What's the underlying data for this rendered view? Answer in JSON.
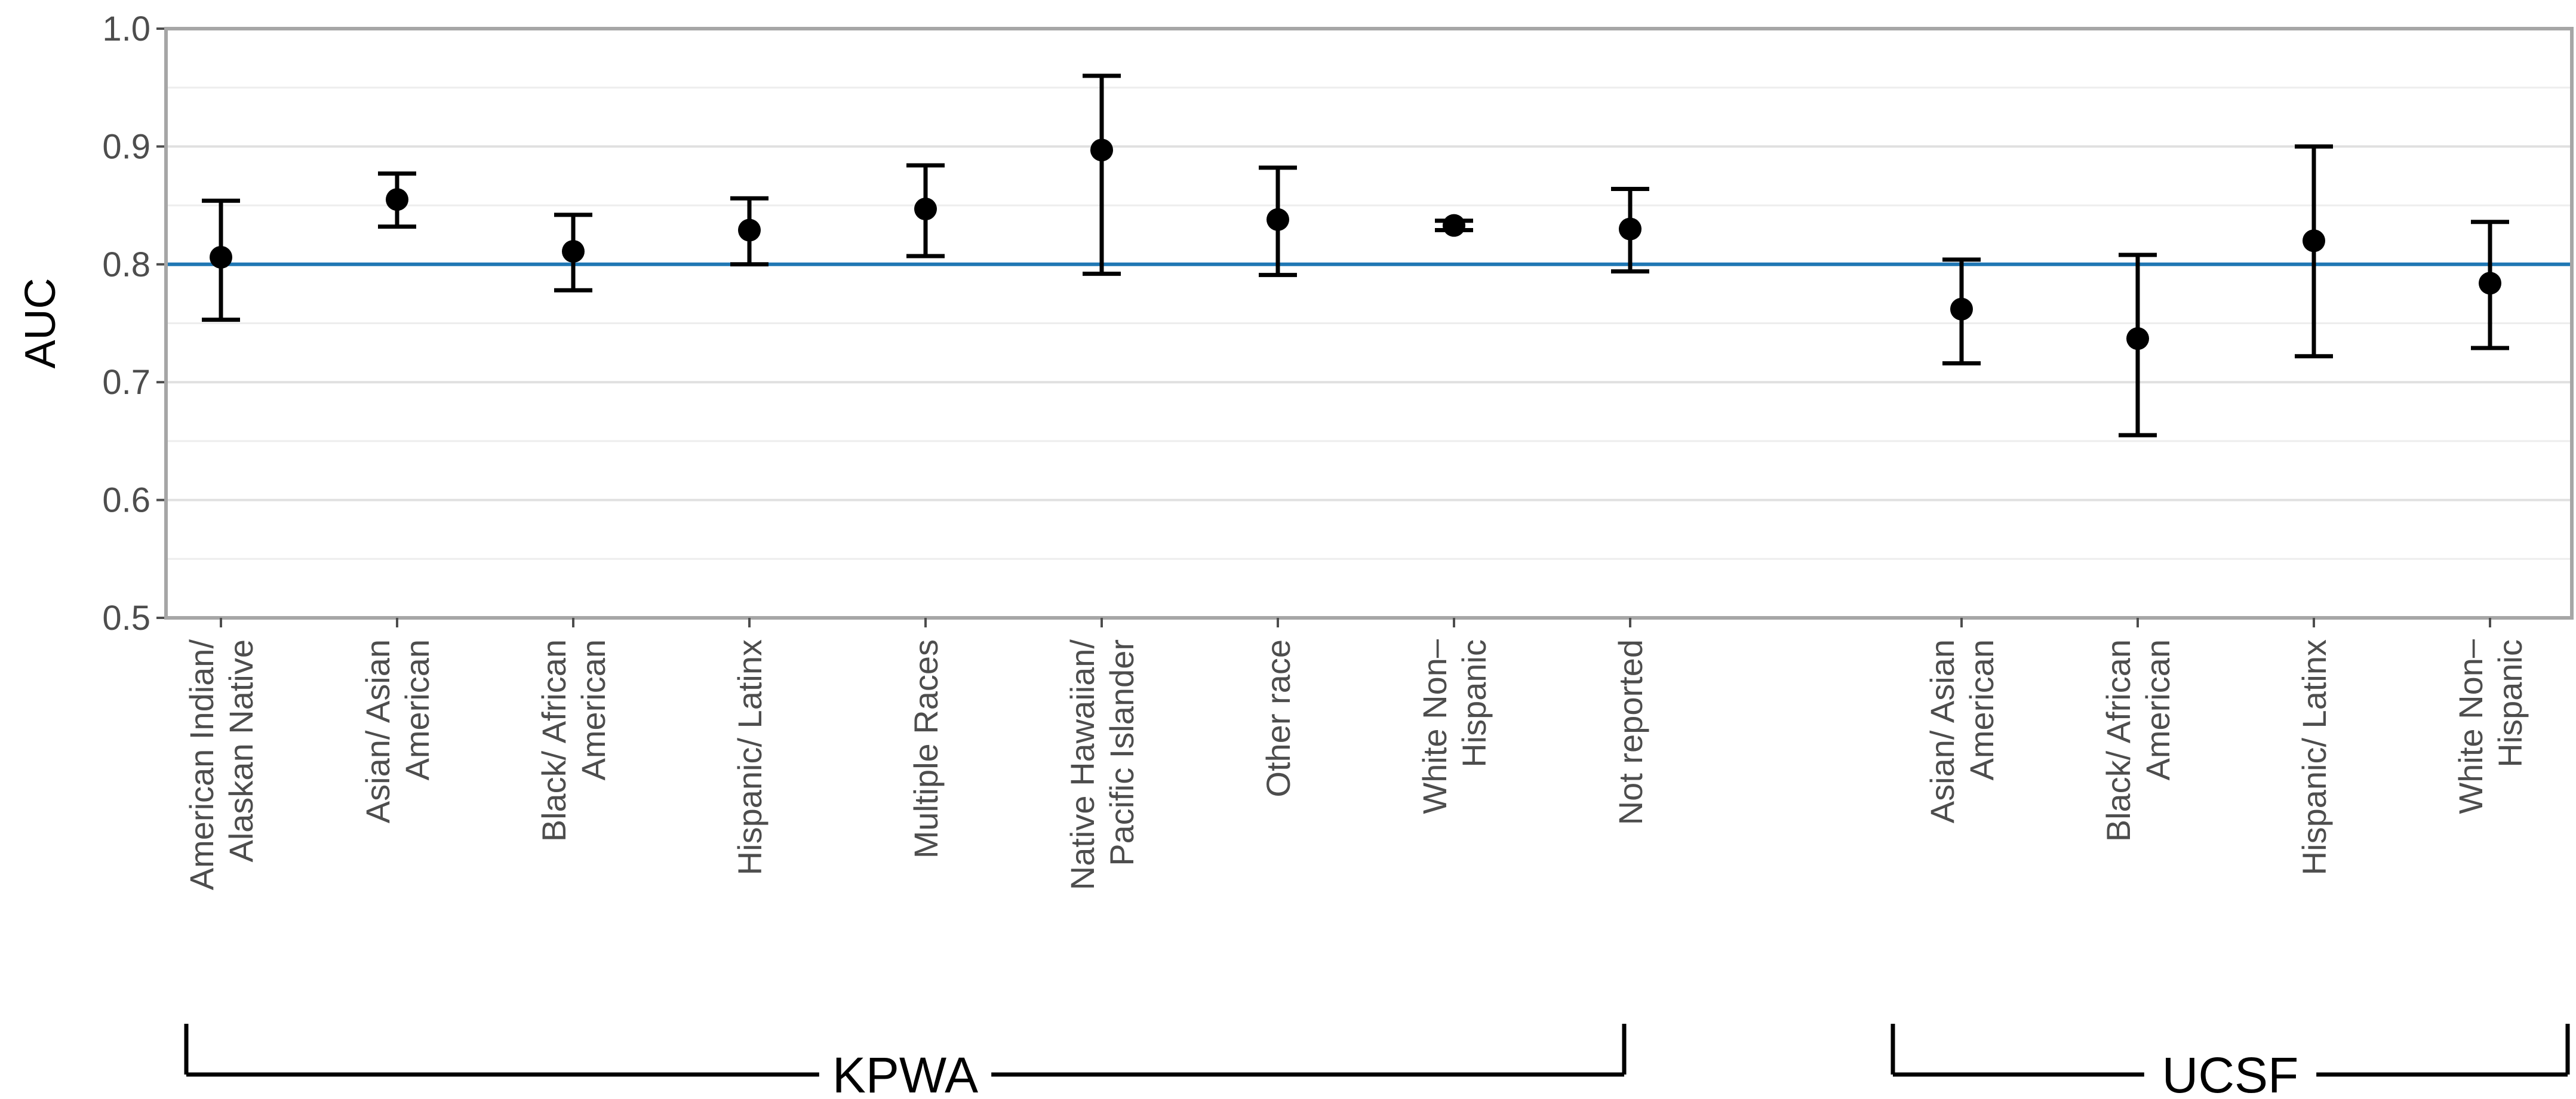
{
  "chart_data": {
    "type": "errorbar",
    "ylabel": "AUC",
    "ylim": [
      0.5,
      1.0
    ],
    "yticks": [
      "0.5",
      "0.6",
      "0.7",
      "0.8",
      "0.9",
      "1.0"
    ],
    "reference_line": {
      "y": 0.8,
      "color": "#1f77b4"
    },
    "grid": true,
    "groups": [
      {
        "label": "KPWA",
        "from": 0,
        "to": 8
      },
      {
        "label": "UCSF",
        "from": 9,
        "to": 12
      }
    ],
    "categories": [
      {
        "lines": [
          "American Indian/",
          "Alaskan Native"
        ],
        "estimate": 0.806,
        "lower": 0.753,
        "upper": 0.854
      },
      {
        "lines": [
          "Asian/ Asian",
          "American"
        ],
        "estimate": 0.855,
        "lower": 0.832,
        "upper": 0.877
      },
      {
        "lines": [
          "Black/ African",
          "American"
        ],
        "estimate": 0.811,
        "lower": 0.778,
        "upper": 0.842
      },
      {
        "lines": [
          "Hispanic/ Latinx"
        ],
        "estimate": 0.829,
        "lower": 0.8,
        "upper": 0.856
      },
      {
        "lines": [
          "Multiple Races"
        ],
        "estimate": 0.847,
        "lower": 0.807,
        "upper": 0.884
      },
      {
        "lines": [
          "Native Hawaiian/",
          "Pacific Islander"
        ],
        "estimate": 0.897,
        "lower": 0.792,
        "upper": 0.96
      },
      {
        "lines": [
          "Other race"
        ],
        "estimate": 0.838,
        "lower": 0.791,
        "upper": 0.882
      },
      {
        "lines": [
          "White Non–",
          "Hispanic"
        ],
        "estimate": 0.833,
        "lower": 0.829,
        "upper": 0.837
      },
      {
        "lines": [
          "Not reported"
        ],
        "estimate": 0.83,
        "lower": 0.794,
        "upper": 0.864
      },
      {
        "lines": [
          "Asian/ Asian",
          "American"
        ],
        "estimate": 0.762,
        "lower": 0.716,
        "upper": 0.804
      },
      {
        "lines": [
          "Black/ African",
          "American"
        ],
        "estimate": 0.737,
        "lower": 0.655,
        "upper": 0.808
      },
      {
        "lines": [
          "Hispanic/ Latinx"
        ],
        "estimate": 0.82,
        "lower": 0.722,
        "upper": 0.9
      },
      {
        "lines": [
          "White Non–",
          "Hispanic"
        ],
        "estimate": 0.784,
        "lower": 0.729,
        "upper": 0.836
      }
    ]
  }
}
